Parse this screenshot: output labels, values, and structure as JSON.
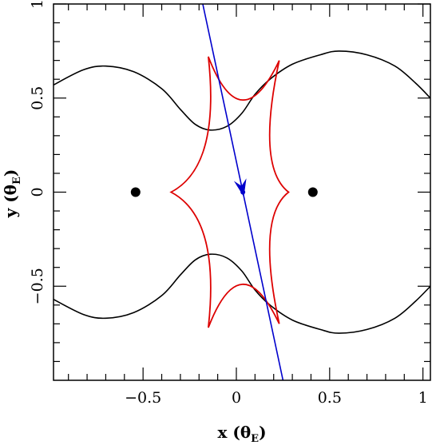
{
  "chart_data": {
    "type": "scatter",
    "title": "",
    "xlabel": "x",
    "xlabel_unit": "θ",
    "xlabel_unit_sub": "E",
    "ylabel": "y",
    "ylabel_unit": "θ",
    "ylabel_unit_sub": "E",
    "xlim": [
      -0.98,
      1.04
    ],
    "ylim": [
      -1.0,
      1.0
    ],
    "x_ticks": [
      {
        "value": -0.5,
        "label": "−0.5"
      },
      {
        "value": 0,
        "label": "0"
      },
      {
        "value": 0.5,
        "label": "0.5"
      },
      {
        "value": 1,
        "label": "1"
      }
    ],
    "y_ticks": [
      {
        "value": -0.5,
        "label": "−0.5"
      },
      {
        "value": 0,
        "label": "0"
      },
      {
        "value": 0.5,
        "label": "0.5"
      },
      {
        "value": 1,
        "label": "1"
      }
    ],
    "grid": false,
    "legend": "none",
    "lens_positions": [
      {
        "x": -0.54,
        "y": 0.0
      },
      {
        "x": 0.41,
        "y": 0.0
      }
    ],
    "caustic": {
      "color": "#dd0000",
      "cusps": [
        {
          "x": -0.35,
          "y": 0.0
        },
        {
          "x": -0.15,
          "y": 0.72
        },
        {
          "x": 0.23,
          "y": 0.7
        },
        {
          "x": 0.28,
          "y": 0.0
        },
        {
          "x": 0.23,
          "y": -0.7
        },
        {
          "x": -0.15,
          "y": -0.72
        }
      ]
    },
    "critical_curve": {
      "color": "#000000",
      "upper": [
        {
          "x": -0.98,
          "y": 0.57
        },
        {
          "x": -0.82,
          "y": 0.65
        },
        {
          "x": -0.7,
          "y": 0.67
        },
        {
          "x": -0.55,
          "y": 0.64
        },
        {
          "x": -0.4,
          "y": 0.55
        },
        {
          "x": -0.3,
          "y": 0.44
        },
        {
          "x": -0.22,
          "y": 0.36
        },
        {
          "x": -0.14,
          "y": 0.33
        },
        {
          "x": -0.05,
          "y": 0.35
        },
        {
          "x": 0.03,
          "y": 0.42
        },
        {
          "x": 0.1,
          "y": 0.52
        },
        {
          "x": 0.18,
          "y": 0.6
        },
        {
          "x": 0.3,
          "y": 0.68
        },
        {
          "x": 0.45,
          "y": 0.73
        },
        {
          "x": 0.55,
          "y": 0.75
        },
        {
          "x": 0.7,
          "y": 0.73
        },
        {
          "x": 0.85,
          "y": 0.67
        },
        {
          "x": 0.96,
          "y": 0.58
        },
        {
          "x": 1.04,
          "y": 0.5
        }
      ],
      "lower": [
        {
          "x": -0.98,
          "y": -0.57
        },
        {
          "x": -0.82,
          "y": -0.65
        },
        {
          "x": -0.7,
          "y": -0.67
        },
        {
          "x": -0.55,
          "y": -0.64
        },
        {
          "x": -0.4,
          "y": -0.55
        },
        {
          "x": -0.3,
          "y": -0.44
        },
        {
          "x": -0.22,
          "y": -0.36
        },
        {
          "x": -0.14,
          "y": -0.33
        },
        {
          "x": -0.05,
          "y": -0.35
        },
        {
          "x": 0.03,
          "y": -0.42
        },
        {
          "x": 0.1,
          "y": -0.52
        },
        {
          "x": 0.18,
          "y": -0.6
        },
        {
          "x": 0.3,
          "y": -0.68
        },
        {
          "x": 0.45,
          "y": -0.73
        },
        {
          "x": 0.55,
          "y": -0.75
        },
        {
          "x": 0.7,
          "y": -0.73
        },
        {
          "x": 0.85,
          "y": -0.67
        },
        {
          "x": 0.96,
          "y": -0.58
        },
        {
          "x": 1.04,
          "y": -0.5
        }
      ]
    },
    "source_trajectory": {
      "color": "#0000cc",
      "start": {
        "x": -0.18,
        "y": 1.0
      },
      "end": {
        "x": 0.25,
        "y": -1.0
      },
      "source_point": {
        "x": 0.035,
        "y": 0.0
      },
      "arrow_tip": {
        "x": 0.04,
        "y": -0.025
      }
    }
  }
}
